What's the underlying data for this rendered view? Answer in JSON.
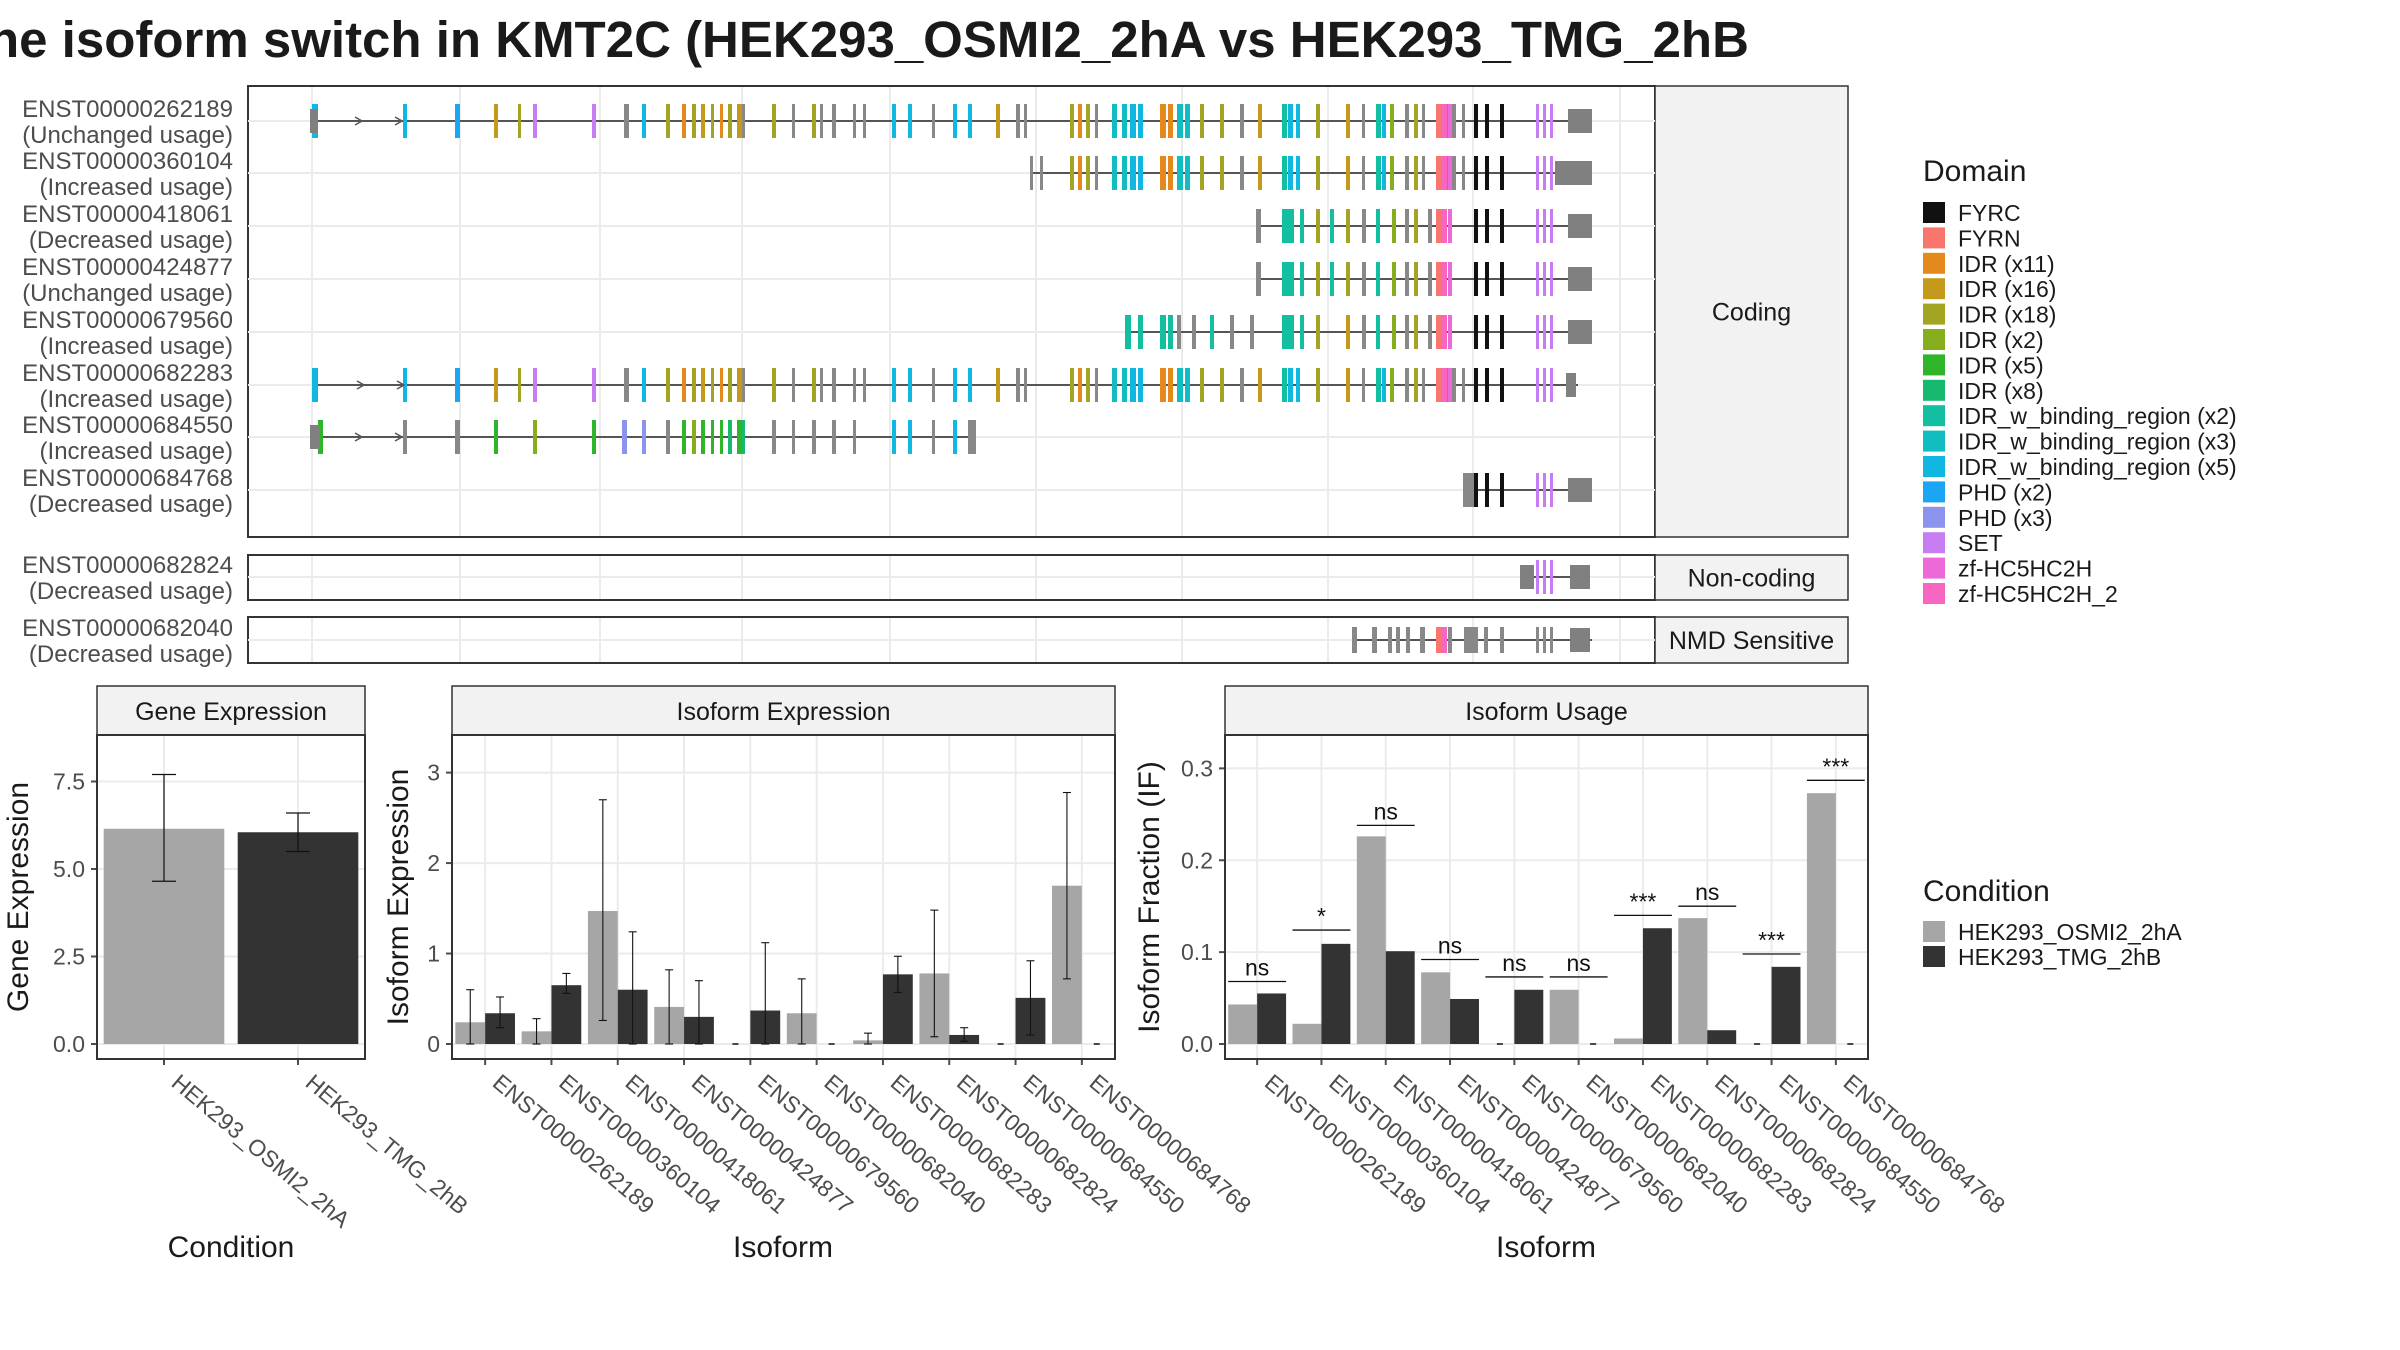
{
  "title": "he isoform switch in KMT2C (HEK293_OSMI2_2hA vs HEK293_TMG_2hB",
  "colors": {
    "condition_a": "#a6a6a6",
    "condition_b": "#333333",
    "domains": {
      "FYRC": "#111111",
      "FYRN": "#f8766d",
      "IDR (x11)": "#e48a1c",
      "IDR (x16)": "#c49a1b",
      "IDR (x18)": "#a3a422",
      "IDR (x2)": "#86ad1c",
      "IDR (x5)": "#2fb42a",
      "IDR (x8)": "#17b96e",
      "IDR_w_binding_region (x2)": "#12bfa0",
      "IDR_w_binding_region (x3)": "#11bdc0",
      "IDR_w_binding_region (x5)": "#10b7e0",
      "PHD (x2)": "#1aa6f2",
      "PHD (x3)": "#8c93ec",
      "SET": "#c77cf2",
      "zf-HC5HC2H": "#ed69d8",
      "zf-HC5HC2H_2": "#f766c0"
    }
  },
  "isoform_plot": {
    "x_range_bp": [
      0,
      100
    ],
    "facets": [
      "Coding",
      "Non-coding",
      "NMD Sensitive"
    ],
    "transcripts": [
      {
        "id": "ENST00000262189",
        "usage": "(Unchanged usage)",
        "facet": "Coding"
      },
      {
        "id": "ENST00000360104",
        "usage": "(Increased usage)",
        "facet": "Coding"
      },
      {
        "id": "ENST00000418061",
        "usage": "(Decreased usage)",
        "facet": "Coding"
      },
      {
        "id": "ENST00000424877",
        "usage": "(Unchanged usage)",
        "facet": "Coding"
      },
      {
        "id": "ENST00000679560",
        "usage": "(Increased usage)",
        "facet": "Coding"
      },
      {
        "id": "ENST00000682283",
        "usage": "(Increased usage)",
        "facet": "Coding"
      },
      {
        "id": "ENST00000684550",
        "usage": "(Increased usage)",
        "facet": "Coding"
      },
      {
        "id": "ENST00000684768",
        "usage": "(Decreased usage)",
        "facet": "Coding"
      },
      {
        "id": "ENST00000682824",
        "usage": "(Decreased usage)",
        "facet": "Non-coding"
      },
      {
        "id": "ENST00000682040",
        "usage": "(Decreased usage)",
        "facet": "NMD Sensitive"
      }
    ]
  },
  "legends": {
    "domain_title": "Domain",
    "domain_items": [
      "FYRC",
      "FYRN",
      "IDR (x11)",
      "IDR (x16)",
      "IDR (x18)",
      "IDR (x2)",
      "IDR (x5)",
      "IDR (x8)",
      "IDR_w_binding_region (x2)",
      "IDR_w_binding_region (x3)",
      "IDR_w_binding_region (x5)",
      "PHD (x2)",
      "PHD (x3)",
      "SET",
      "zf-HC5HC2H",
      "zf-HC5HC2H_2"
    ],
    "condition_title": "Condition",
    "condition_items": [
      "HEK293_OSMI2_2hA",
      "HEK293_TMG_2hB"
    ]
  },
  "chart_data": [
    {
      "type": "bar",
      "title": "Gene Expression",
      "xlabel": "Condition",
      "ylabel": "Gene Expression",
      "ylim": [
        0,
        8.4
      ],
      "yticks": [
        "0.0",
        "2.5",
        "5.0",
        "7.5"
      ],
      "categories": [
        "HEK293_OSMI2_2hA",
        "HEK293_TMG_2hB"
      ],
      "values": [
        6.15,
        6.05
      ],
      "error_low": [
        4.65,
        5.5
      ],
      "error_high": [
        7.7,
        6.6
      ]
    },
    {
      "type": "bar",
      "title": "Isoform Expression",
      "xlabel": "Isoform",
      "ylabel": "Isoform Expression",
      "ylim": [
        0,
        3.25
      ],
      "yticks": [
        "0",
        "1",
        "2",
        "3"
      ],
      "categories": [
        "ENST00000262189",
        "ENST00000360104",
        "ENST00000418061",
        "ENST00000424877",
        "ENST00000679560",
        "ENST00000682040",
        "ENST00000682283",
        "ENST00000682824",
        "ENST00000684550",
        "ENST00000684768"
      ],
      "series": [
        {
          "name": "HEK293_OSMI2_2hA",
          "values": [
            0.24,
            0.14,
            1.47,
            0.41,
            0.0,
            0.34,
            0.04,
            0.78,
            0.0,
            1.75
          ],
          "error_low": [
            0.0,
            0.0,
            0.26,
            0.0,
            0.0,
            0.0,
            0.0,
            0.08,
            0.0,
            0.72
          ],
          "error_high": [
            0.6,
            0.28,
            2.7,
            0.82,
            0.0,
            0.72,
            0.12,
            1.48,
            0.0,
            2.78
          ]
        },
        {
          "name": "HEK293_TMG_2hB",
          "values": [
            0.34,
            0.65,
            0.6,
            0.3,
            0.37,
            0.0,
            0.77,
            0.1,
            0.51,
            0.0
          ],
          "error_low": [
            0.18,
            0.56,
            0.0,
            0.0,
            0.0,
            0.0,
            0.57,
            0.03,
            0.1,
            0.0
          ],
          "error_high": [
            0.52,
            0.78,
            1.24,
            0.7,
            1.12,
            0.0,
            0.97,
            0.18,
            0.92,
            0.0
          ]
        }
      ]
    },
    {
      "type": "bar",
      "title": "Isoform Usage",
      "xlabel": "Isoform",
      "ylabel": "Isoform Fraction (IF)",
      "ylim": [
        0,
        0.32
      ],
      "yticks": [
        "0.0",
        "0.1",
        "0.2",
        "0.3"
      ],
      "categories": [
        "ENST00000262189",
        "ENST00000360104",
        "ENST00000418061",
        "ENST00000424877",
        "ENST00000679560",
        "ENST00000682040",
        "ENST00000682283",
        "ENST00000682824",
        "ENST00000684550",
        "ENST00000684768"
      ],
      "series": [
        {
          "name": "HEK293_OSMI2_2hA",
          "values": [
            0.043,
            0.022,
            0.226,
            0.078,
            0.0,
            0.059,
            0.006,
            0.137,
            0.0,
            0.273
          ]
        },
        {
          "name": "HEK293_TMG_2hB",
          "values": [
            0.055,
            0.109,
            0.101,
            0.049,
            0.059,
            0.0,
            0.126,
            0.015,
            0.084,
            0.0
          ]
        }
      ],
      "significance": [
        "ns",
        "*",
        "ns",
        "ns",
        "ns",
        "ns",
        "***",
        "ns",
        "***",
        "***"
      ],
      "significance_y": [
        0.068,
        0.124,
        0.238,
        0.092,
        0.073,
        0.073,
        0.14,
        0.15,
        0.098,
        0.287
      ]
    }
  ]
}
